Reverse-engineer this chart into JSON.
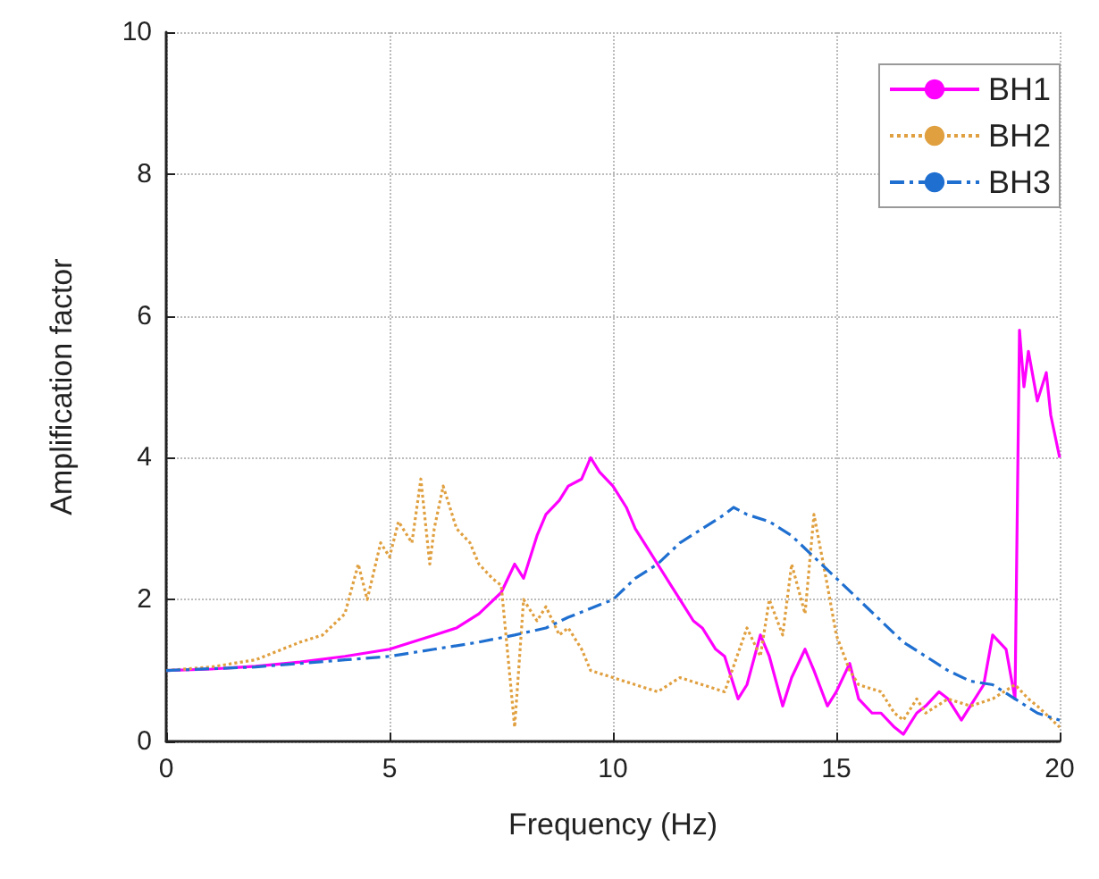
{
  "chart_data": {
    "type": "line",
    "xlabel": "Frequency (Hz)",
    "ylabel": "Amplification factor",
    "xlim": [
      0,
      20
    ],
    "xticks": [
      0,
      5,
      10,
      15,
      20
    ],
    "ylim": [
      0,
      10
    ],
    "yticks": [
      0,
      2,
      4,
      6,
      8,
      10
    ],
    "grid": true,
    "legend": "top right",
    "marker": "none",
    "series": [
      {
        "name": "BH1",
        "color": "#ff00ff",
        "line_style": "solid",
        "x": [
          0,
          1,
          2,
          3,
          4,
          5,
          6,
          6.5,
          7,
          7.5,
          7.8,
          8,
          8.3,
          8.5,
          8.8,
          9,
          9.3,
          9.5,
          9.7,
          10,
          10.3,
          10.5,
          10.8,
          11,
          11.3,
          11.5,
          11.8,
          12,
          12.3,
          12.5,
          12.8,
          13,
          13.3,
          13.5,
          13.8,
          14,
          14.3,
          14.5,
          14.8,
          15,
          15.3,
          15.5,
          15.8,
          16,
          16.3,
          16.5,
          16.8,
          17,
          17.3,
          17.5,
          17.8,
          18,
          18.3,
          18.5,
          18.8,
          19,
          19.1,
          19.2,
          19.3,
          19.5,
          19.7,
          19.8,
          20
        ],
        "values": [
          1,
          1.02,
          1.06,
          1.12,
          1.2,
          1.3,
          1.5,
          1.6,
          1.8,
          2.1,
          2.5,
          2.3,
          2.9,
          3.2,
          3.4,
          3.6,
          3.7,
          4.0,
          3.8,
          3.6,
          3.3,
          3.0,
          2.7,
          2.5,
          2.2,
          2.0,
          1.7,
          1.6,
          1.3,
          1.2,
          0.6,
          0.8,
          1.5,
          1.2,
          0.5,
          0.9,
          1.3,
          1.0,
          0.5,
          0.7,
          1.1,
          0.6,
          0.4,
          0.4,
          0.2,
          0.1,
          0.4,
          0.5,
          0.7,
          0.6,
          0.3,
          0.5,
          0.8,
          1.5,
          1.3,
          0.6,
          5.8,
          5.0,
          5.5,
          4.8,
          5.2,
          4.6,
          4.0
        ]
      },
      {
        "name": "BH2",
        "color": "#e0a040",
        "line_style": "dotted",
        "x": [
          0,
          1,
          2,
          3,
          3.5,
          4,
          4.3,
          4.5,
          4.8,
          5,
          5.2,
          5.5,
          5.7,
          5.9,
          6,
          6.2,
          6.5,
          6.8,
          7,
          7.3,
          7.5,
          7.8,
          8,
          8.3,
          8.5,
          8.8,
          9,
          9.3,
          9.5,
          10,
          10.5,
          11,
          11.5,
          12,
          12.5,
          13,
          13.3,
          13.5,
          13.8,
          14,
          14.3,
          14.5,
          14.8,
          15,
          15.3,
          15.5,
          16,
          16.3,
          16.5,
          16.8,
          17,
          17.5,
          18,
          18.5,
          19,
          19.3,
          19.5,
          20
        ],
        "values": [
          1,
          1.05,
          1.15,
          1.4,
          1.5,
          1.8,
          2.5,
          2.0,
          2.8,
          2.6,
          3.1,
          2.8,
          3.7,
          2.5,
          3.0,
          3.6,
          3.0,
          2.8,
          2.5,
          2.3,
          2.2,
          0.2,
          2.0,
          1.7,
          1.9,
          1.5,
          1.6,
          1.3,
          1.0,
          0.9,
          0.8,
          0.7,
          0.9,
          0.8,
          0.7,
          1.6,
          1.2,
          2.0,
          1.5,
          2.5,
          1.8,
          3.2,
          2.2,
          1.5,
          1.0,
          0.8,
          0.7,
          0.4,
          0.3,
          0.6,
          0.4,
          0.6,
          0.5,
          0.6,
          0.8,
          0.6,
          0.5,
          0.2
        ]
      },
      {
        "name": "BH3",
        "color": "#1f6fd0",
        "line_style": "dashed",
        "x": [
          0,
          2,
          4,
          5,
          6,
          7,
          7.8,
          8.5,
          9,
          10,
          10.5,
          11,
          11.5,
          12,
          12.5,
          12.7,
          13,
          13.5,
          14,
          14.5,
          15,
          15.5,
          16,
          16.5,
          17,
          17.5,
          18,
          18.5,
          19,
          19.5,
          20
        ],
        "values": [
          1,
          1.05,
          1.15,
          1.2,
          1.3,
          1.4,
          1.5,
          1.6,
          1.75,
          2.0,
          2.3,
          2.5,
          2.8,
          3.0,
          3.2,
          3.3,
          3.2,
          3.1,
          2.9,
          2.6,
          2.3,
          2.0,
          1.7,
          1.4,
          1.2,
          1.0,
          0.85,
          0.8,
          0.6,
          0.4,
          0.3
        ]
      }
    ]
  }
}
